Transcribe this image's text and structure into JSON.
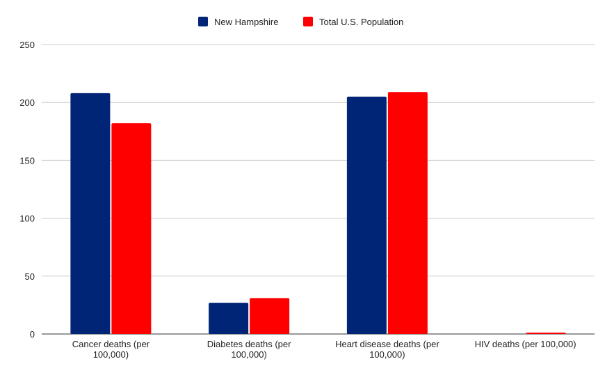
{
  "chart_data": {
    "type": "bar",
    "title": "",
    "xlabel": "",
    "ylabel": "",
    "categories": [
      [
        "Cancer deaths (per",
        "100,000)"
      ],
      [
        "Diabetes deaths (per",
        "100,000)"
      ],
      [
        "Heart disease deaths (per",
        "100,000)"
      ],
      [
        "HIV deaths (per 100,000)"
      ]
    ],
    "series": [
      {
        "name": "New Hampshire",
        "color": "#002577",
        "values": [
          208,
          27,
          205,
          0
        ]
      },
      {
        "name": "Total U.S. Population",
        "color": "#ff0000",
        "values": [
          182,
          31,
          209,
          1.2
        ]
      }
    ],
    "ylim": [
      0,
      250
    ],
    "yticks": [
      0,
      50,
      100,
      150,
      200,
      250
    ],
    "grid": true,
    "legend": "top-center"
  }
}
